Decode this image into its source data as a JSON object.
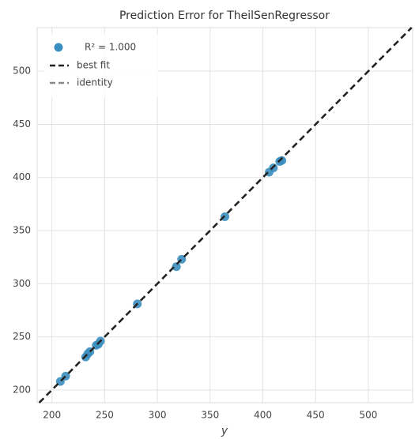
{
  "chart_data": {
    "type": "scatter",
    "title": "Prediction Error for TheilSenRegressor",
    "x_label": "y",
    "xlim": [
      186,
      542
    ],
    "ylim": [
      188,
      541
    ],
    "xticks": [
      200,
      250,
      300,
      350,
      400,
      450,
      500
    ],
    "yticks": [
      200,
      250,
      300,
      350,
      400,
      450,
      500
    ],
    "grid": true,
    "legend": "upper left",
    "series": [
      {
        "name": "R² = 1.000",
        "color": "#3a8ebf",
        "x": [
          208,
          213,
          232,
          234,
          236,
          242,
          244,
          246,
          281,
          318,
          323,
          364,
          406,
          410,
          416,
          418
        ],
        "values": [
          208,
          213,
          231,
          234,
          236,
          242,
          243,
          246,
          281,
          316,
          323,
          363,
          405,
          409,
          415,
          416
        ]
      }
    ],
    "lines": [
      {
        "name": "best fit",
        "color": "#222222"
      },
      {
        "name": "identity",
        "color": "#888888"
      }
    ]
  }
}
